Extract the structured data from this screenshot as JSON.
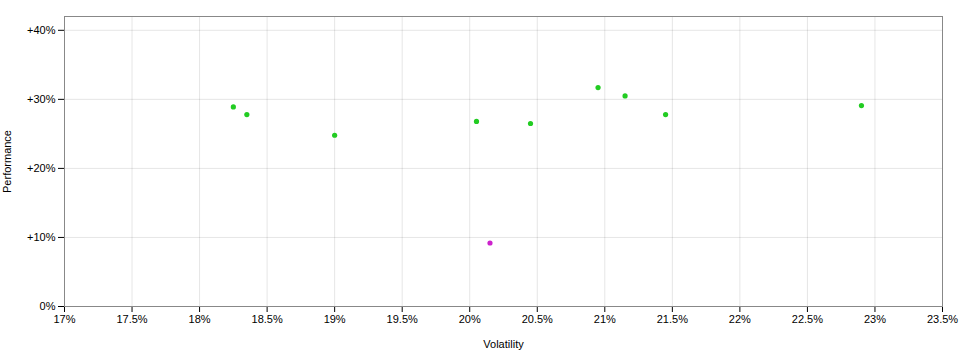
{
  "chart_data": {
    "type": "scatter",
    "xlabel": "Volatility",
    "ylabel": "Performance",
    "series": [
      {
        "color": "#22cc22",
        "marker": "circle",
        "x": [
          0.1825,
          0.1835,
          0.19,
          0.2005,
          0.2045,
          0.2095,
          0.2115,
          0.2145,
          0.229
        ],
        "values": [
          0.289,
          0.278,
          0.248,
          0.268,
          0.265,
          0.317,
          0.305,
          0.278,
          0.291
        ]
      },
      {
        "color": "#cc22cc",
        "marker": "circle",
        "x": [
          0.2015
        ],
        "values": [
          0.092
        ]
      }
    ],
    "xlim": [
      0.17,
      0.235
    ],
    "ylim": [
      0.0,
      0.42
    ],
    "xticks": [
      {
        "value": 0.17,
        "label": "17%"
      },
      {
        "value": 0.175,
        "label": "17.5%"
      },
      {
        "value": 0.18,
        "label": "18%"
      },
      {
        "value": 0.185,
        "label": "18.5%"
      },
      {
        "value": 0.19,
        "label": "19%"
      },
      {
        "value": 0.195,
        "label": "19.5%"
      },
      {
        "value": 0.2,
        "label": "20%"
      },
      {
        "value": 0.205,
        "label": "20.5%"
      },
      {
        "value": 0.21,
        "label": "21%"
      },
      {
        "value": 0.215,
        "label": "21.5%"
      },
      {
        "value": 0.22,
        "label": "22%"
      },
      {
        "value": 0.225,
        "label": "22.5%"
      },
      {
        "value": 0.23,
        "label": "23%"
      },
      {
        "value": 0.235,
        "label": "23.5%"
      }
    ],
    "yticks": [
      {
        "value": 0.0,
        "label": "0%"
      },
      {
        "value": 0.1,
        "label": "+10%"
      },
      {
        "value": 0.2,
        "label": "+20%"
      },
      {
        "value": 0.3,
        "label": "+30%"
      },
      {
        "value": 0.4,
        "label": "+40%"
      }
    ],
    "grid": true
  }
}
